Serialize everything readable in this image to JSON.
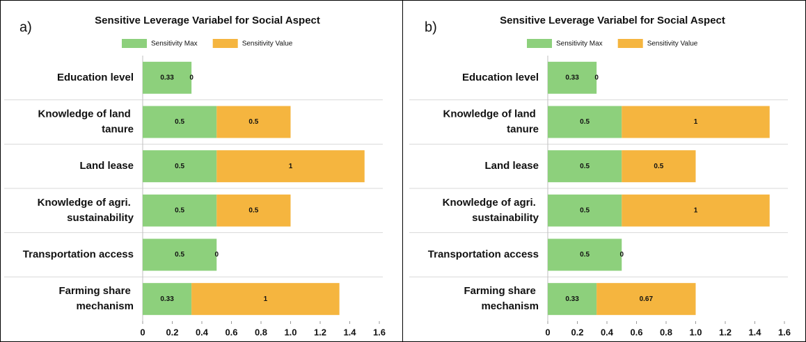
{
  "chart_data": [
    {
      "type": "bar",
      "orientation": "horizontal",
      "stacked": true,
      "panel_label": "a)",
      "title": "Sensitive Leverage Variabel for Social Aspect",
      "categories": [
        "Education level",
        "Knowledge of land tanure",
        "Land lease",
        "Knowledge of agri. sustainability",
        "Transportation access",
        "Farming share mechanism"
      ],
      "series": [
        {
          "name": "Sensitivity Max",
          "color": "#8dd07c",
          "values": [
            0.33,
            0.5,
            0.5,
            0.5,
            0.5,
            0.33
          ]
        },
        {
          "name": "Sensitivity Value",
          "color": "#f5b53f",
          "values": [
            0,
            0.5,
            1,
            0.5,
            0,
            1
          ]
        }
      ],
      "xlim": [
        0,
        1.6
      ],
      "xticks": [
        0,
        0.2,
        0.4,
        0.6,
        0.8,
        {
          "value": 1,
          "label": "1.0"
        },
        1.2,
        1.4,
        1.6
      ],
      "legend": "top"
    },
    {
      "type": "bar",
      "orientation": "horizontal",
      "stacked": true,
      "panel_label": "b)",
      "title": "Sensitive Leverage Variabel for Social Aspect",
      "categories": [
        "Education level",
        "Knowledge of land tanure",
        "Land lease",
        "Knowledge of agri. sustainability",
        "Transportation access",
        "Farming share mechanism"
      ],
      "series": [
        {
          "name": "Sensitivity Max",
          "color": "#8dd07c",
          "values": [
            0.33,
            0.5,
            0.5,
            0.5,
            0.5,
            0.33
          ]
        },
        {
          "name": "Sensitivity Value",
          "color": "#f5b53f",
          "values": [
            0,
            1,
            0.5,
            1,
            0,
            0.67
          ]
        }
      ],
      "xlim": [
        0,
        1.6
      ],
      "xticks": [
        0,
        0.2,
        0.4,
        0.6,
        0.8,
        {
          "value": 1,
          "label": "1.0"
        },
        1.2,
        1.4,
        1.6
      ],
      "legend": "top"
    }
  ]
}
